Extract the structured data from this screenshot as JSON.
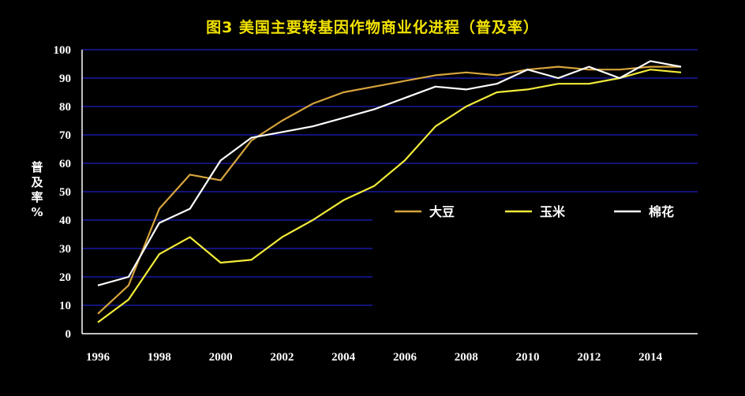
{
  "chart_data": {
    "type": "line",
    "title": "图3  美国主要转基因作物商业化进程（普及率）",
    "ylabel": "普及率%",
    "ylabel_chars": [
      "普",
      "及",
      "率",
      "%"
    ],
    "xlabel": "",
    "x": [
      1996,
      1997,
      1998,
      1999,
      2000,
      2001,
      2002,
      2003,
      2004,
      2005,
      2006,
      2007,
      2008,
      2009,
      2010,
      2011,
      2012,
      2013,
      2014,
      2015
    ],
    "x_tick_labels": [
      "1996",
      "1998",
      "2000",
      "2002",
      "2004",
      "2006",
      "2008",
      "2010",
      "2012",
      "2014"
    ],
    "y_tick_labels": [
      "0",
      "10",
      "20",
      "30",
      "40",
      "50",
      "60",
      "70",
      "80",
      "90",
      "100"
    ],
    "ylim": [
      0,
      100
    ],
    "xlim": [
      1996,
      2015
    ],
    "grid": "horizontal",
    "legend_position": "right-middle",
    "series": [
      {
        "name": "大豆",
        "color": "#D6A43C",
        "values": [
          7,
          17,
          44,
          56,
          54,
          68,
          75,
          81,
          85,
          87,
          89,
          91,
          92,
          91,
          93,
          94,
          93,
          93,
          94,
          94
        ]
      },
      {
        "name": "玉米",
        "color": "#F2EC3A",
        "values": [
          4,
          12,
          28,
          34,
          25,
          26,
          34,
          40,
          47,
          52,
          61,
          73,
          80,
          85,
          86,
          88,
          88,
          90,
          93,
          92
        ]
      },
      {
        "name": "棉花",
        "color": "#FFFFFF",
        "values": [
          17,
          20,
          39,
          44,
          61,
          69,
          71,
          73,
          76,
          79,
          83,
          87,
          86,
          88,
          93,
          90,
          94,
          90,
          96,
          94
        ]
      }
    ]
  },
  "colors": {
    "background": "#000000",
    "title": "#F2E200",
    "grid": "#1F1FBF",
    "axis_text": "#FFFFFF"
  }
}
